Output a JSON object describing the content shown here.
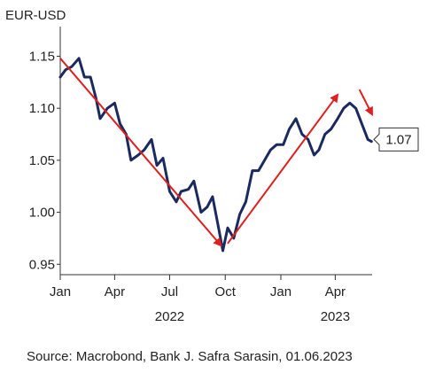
{
  "chart_data": {
    "type": "line",
    "ylabel": "EUR-USD",
    "ylim": [
      0.94,
      1.17
    ],
    "yticks": [
      0.95,
      1.0,
      1.05,
      1.1,
      1.15
    ],
    "ytick_labels": [
      "0.95",
      "1.00",
      "1.05",
      "1.10",
      "1.15"
    ],
    "xlim": [
      "2022-01-01",
      "2023-06-01"
    ],
    "xticks": [
      "2022-01-01",
      "2022-04-01",
      "2022-07-01",
      "2022-10-01",
      "2023-01-01",
      "2023-04-01"
    ],
    "xtick_labels": [
      "Jan",
      "Apr",
      "Jul",
      "Oct",
      "Jan",
      "Apr"
    ],
    "year_labels": [
      {
        "label": "2022",
        "date": "2022-07-01"
      },
      {
        "label": "2023",
        "date": "2023-04-01"
      }
    ],
    "grid": false,
    "line_color": "#1b2a5e",
    "arrow_color": "#e01f1f",
    "series": [
      {
        "x": [
          "2022-01-01",
          "2022-01-10",
          "2022-01-20",
          "2022-02-01",
          "2022-02-10",
          "2022-02-20",
          "2022-03-01",
          "2022-03-08",
          "2022-03-20",
          "2022-04-01",
          "2022-04-10",
          "2022-04-20",
          "2022-04-28",
          "2022-05-10",
          "2022-05-20",
          "2022-06-01",
          "2022-06-10",
          "2022-06-20",
          "2022-07-01",
          "2022-07-12",
          "2022-07-20",
          "2022-08-01",
          "2022-08-10",
          "2022-08-22",
          "2022-09-01",
          "2022-09-10",
          "2022-09-20",
          "2022-09-27",
          "2022-10-05",
          "2022-10-15",
          "2022-10-25",
          "2022-11-04",
          "2022-11-15",
          "2022-11-25",
          "2022-12-05",
          "2022-12-15",
          "2022-12-25",
          "2023-01-05",
          "2023-01-15",
          "2023-01-26",
          "2023-02-05",
          "2023-02-15",
          "2023-02-25",
          "2023-03-05",
          "2023-03-15",
          "2023-03-25",
          "2023-04-05",
          "2023-04-15",
          "2023-04-25",
          "2023-05-05",
          "2023-05-15",
          "2023-05-25",
          "2023-05-31"
        ],
        "values": [
          1.13,
          1.137,
          1.14,
          1.148,
          1.13,
          1.13,
          1.11,
          1.09,
          1.1,
          1.105,
          1.085,
          1.075,
          1.05,
          1.055,
          1.06,
          1.07,
          1.045,
          1.052,
          1.02,
          1.01,
          1.02,
          1.022,
          1.03,
          1.0,
          1.005,
          1.015,
          0.985,
          0.963,
          0.985,
          0.975,
          0.998,
          1.01,
          1.04,
          1.04,
          1.05,
          1.06,
          1.065,
          1.065,
          1.08,
          1.09,
          1.075,
          1.07,
          1.055,
          1.06,
          1.075,
          1.08,
          1.09,
          1.1,
          1.105,
          1.1,
          1.085,
          1.07,
          1.068
        ]
      }
    ],
    "trend_arrows": [
      {
        "from": {
          "date": "2022-01-01",
          "value": 1.148
        },
        "to": {
          "date": "2022-09-24",
          "value": 0.968
        }
      },
      {
        "from": {
          "date": "2022-10-05",
          "value": 0.97
        },
        "to": {
          "date": "2023-04-05",
          "value": 1.113
        }
      },
      {
        "from": {
          "date": "2023-05-11",
          "value": 1.118
        },
        "to": {
          "date": "2023-06-01",
          "value": 1.094
        }
      }
    ],
    "last_value_label": "1.07",
    "last_value": 1.07
  },
  "source": "Source: Macrobond, Bank J. Safra Sarasin, 01.06.2023"
}
